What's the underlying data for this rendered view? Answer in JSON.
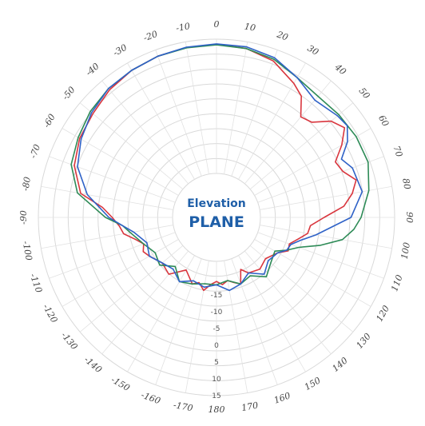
{
  "chart_data": {
    "type": "polar-line",
    "title_line1": "Elevation",
    "title_line2": "PLANE",
    "angle_ticks": [
      0,
      10,
      20,
      30,
      40,
      50,
      60,
      70,
      80,
      90,
      100,
      110,
      120,
      130,
      140,
      150,
      160,
      170,
      180,
      -170,
      -160,
      -150,
      -140,
      -130,
      -120,
      -110,
      -100,
      -90,
      -80,
      -70,
      -60,
      -50,
      -40,
      -30,
      -20,
      -10
    ],
    "angle_tick_labels": [
      "0",
      "10",
      "20",
      "30",
      "40",
      "50",
      "60",
      "70",
      "80",
      "90",
      "100",
      "110",
      "120",
      "130",
      "140",
      "150",
      "160",
      "170",
      "180",
      "-170",
      "-160",
      "-150",
      "-140",
      "-130",
      "-120",
      "-110",
      "-100",
      "-90",
      "-80",
      "-70",
      "-60",
      "-50",
      "-40",
      "-30",
      "-20",
      "-10"
    ],
    "radial_ticks": [
      -15,
      -10,
      -5,
      0,
      5,
      10,
      15
    ],
    "radial_tick_labels": [
      "-15",
      "-10",
      "-5",
      "0",
      "5",
      "10",
      "15"
    ],
    "rlim": [
      -25,
      15
    ],
    "series": [
      {
        "color": "#d9363e",
        "points": [
          [
            0,
            13.5
          ],
          [
            10,
            13
          ],
          [
            20,
            11.5
          ],
          [
            30,
            8
          ],
          [
            35,
            6
          ],
          [
            40,
            1
          ],
          [
            45,
            2
          ],
          [
            50,
            6.5
          ],
          [
            55,
            8.5
          ],
          [
            60,
            5
          ],
          [
            65,
            1
          ],
          [
            70,
            2
          ],
          [
            75,
            5
          ],
          [
            80,
            3
          ],
          [
            85,
            0
          ],
          [
            90,
            -6
          ],
          [
            95,
            -10
          ],
          [
            100,
            -10.5
          ],
          [
            105,
            -13
          ],
          [
            110,
            -15
          ],
          [
            115,
            -14.5
          ],
          [
            120,
            -17
          ],
          [
            130,
            -19
          ],
          [
            140,
            -18
          ],
          [
            150,
            -19
          ],
          [
            155,
            -21
          ],
          [
            160,
            -17
          ],
          [
            165,
            -18
          ],
          [
            170,
            -19
          ],
          [
            175,
            -18
          ],
          [
            180,
            -19
          ],
          [
            -175,
            -18
          ],
          [
            -170,
            -16
          ],
          [
            -165,
            -18
          ],
          [
            -160,
            -17
          ],
          [
            -150,
            -20
          ],
          [
            -140,
            -16
          ],
          [
            -130,
            -17
          ],
          [
            -120,
            -15
          ],
          [
            -115,
            -14
          ],
          [
            -110,
            -15
          ],
          [
            -105,
            -13
          ],
          [
            -100,
            -10
          ],
          [
            -95,
            -9
          ],
          [
            -90,
            -7
          ],
          [
            -85,
            -4
          ],
          [
            -80,
            3
          ],
          [
            -70,
            7
          ],
          [
            -60,
            9
          ],
          [
            -50,
            10
          ],
          [
            -40,
            11.5
          ],
          [
            -30,
            12.5
          ],
          [
            -20,
            13
          ],
          [
            -10,
            13.3
          ],
          [
            0,
            13.5
          ]
        ]
      },
      {
        "color": "#2e8b57",
        "points": [
          [
            0,
            13.3
          ],
          [
            10,
            13
          ],
          [
            20,
            12
          ],
          [
            30,
            10
          ],
          [
            40,
            9
          ],
          [
            50,
            9.5
          ],
          [
            60,
            10
          ],
          [
            70,
            10
          ],
          [
            80,
            8
          ],
          [
            90,
            5
          ],
          [
            95,
            3
          ],
          [
            100,
            0
          ],
          [
            105,
            -6
          ],
          [
            110,
            -12
          ],
          [
            115,
            -15
          ],
          [
            120,
            -18
          ],
          [
            130,
            -17
          ],
          [
            140,
            -15
          ],
          [
            150,
            -18
          ],
          [
            160,
            -17
          ],
          [
            170,
            -19
          ],
          [
            180,
            -18
          ],
          [
            -170,
            -18
          ],
          [
            -160,
            -17
          ],
          [
            -150,
            -16
          ],
          [
            -140,
            -19
          ],
          [
            -130,
            -16
          ],
          [
            -120,
            -17
          ],
          [
            -110,
            -15
          ],
          [
            -100,
            -12
          ],
          [
            -95,
            -10
          ],
          [
            -90,
            -5
          ],
          [
            -80,
            4
          ],
          [
            -70,
            8
          ],
          [
            -60,
            9.5
          ],
          [
            -50,
            11
          ],
          [
            -40,
            12
          ],
          [
            -30,
            12.5
          ],
          [
            -20,
            13
          ],
          [
            -10,
            13.2
          ],
          [
            0,
            13.3
          ]
        ]
      },
      {
        "color": "#2f62c7",
        "points": [
          [
            0,
            13.6
          ],
          [
            10,
            13.5
          ],
          [
            20,
            12.5
          ],
          [
            30,
            10
          ],
          [
            40,
            7.5
          ],
          [
            50,
            9
          ],
          [
            55,
            9.5
          ],
          [
            60,
            7
          ],
          [
            65,
            3
          ],
          [
            70,
            5
          ],
          [
            80,
            6
          ],
          [
            90,
            2
          ],
          [
            100,
            -8
          ],
          [
            105,
            -12
          ],
          [
            110,
            -14.5
          ],
          [
            115,
            -15
          ],
          [
            120,
            -17
          ],
          [
            130,
            -18
          ],
          [
            140,
            -16
          ],
          [
            150,
            -19
          ],
          [
            160,
            -17
          ],
          [
            170,
            -16
          ],
          [
            180,
            -18
          ],
          [
            -170,
            -17
          ],
          [
            -160,
            -18
          ],
          [
            -150,
            -16
          ],
          [
            -140,
            -18
          ],
          [
            -130,
            -17
          ],
          [
            -120,
            -15
          ],
          [
            -110,
            -16
          ],
          [
            -100,
            -13
          ],
          [
            -95,
            -10
          ],
          [
            -90,
            -6
          ],
          [
            -85,
            -3
          ],
          [
            -80,
            1
          ],
          [
            -70,
            6
          ],
          [
            -60,
            8.5
          ],
          [
            -50,
            10.5
          ],
          [
            -40,
            12
          ],
          [
            -30,
            12.5
          ],
          [
            -20,
            13
          ],
          [
            -10,
            13.4
          ],
          [
            0,
            13.6
          ]
        ]
      }
    ]
  }
}
